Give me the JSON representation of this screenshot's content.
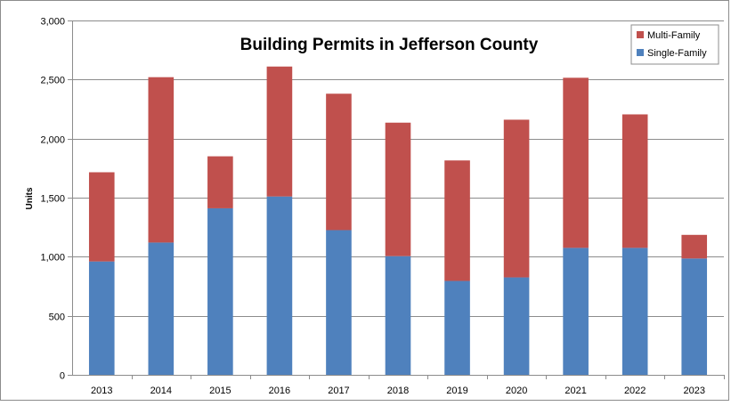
{
  "chart_data": {
    "type": "bar",
    "stacked": true,
    "title": "Building Permits in Jefferson County",
    "xlabel": "",
    "ylabel": "Units",
    "categories": [
      "2013",
      "2014",
      "2015",
      "2016",
      "2017",
      "2018",
      "2019",
      "2020",
      "2021",
      "2022",
      "2023"
    ],
    "series": [
      {
        "name": "Single-Family",
        "color": "#4f81bd",
        "values": [
          960,
          1120,
          1410,
          1510,
          1225,
          1005,
          795,
          825,
          1075,
          1075,
          985
        ]
      },
      {
        "name": "Multi-Family",
        "color": "#c0504d",
        "values": [
          755,
          1400,
          440,
          1100,
          1155,
          1130,
          1020,
          1335,
          1440,
          1130,
          200
        ]
      }
    ],
    "ylim": [
      0,
      3000
    ],
    "yticks": [
      0,
      500,
      1000,
      1500,
      2000,
      2500,
      3000
    ],
    "ytick_labels": [
      "0",
      "500",
      "1,000",
      "1,500",
      "2,000",
      "2,500",
      "3,000"
    ],
    "grid": true,
    "legend": {
      "position": "top-right",
      "entries": [
        "Multi-Family",
        "Single-Family"
      ]
    }
  }
}
